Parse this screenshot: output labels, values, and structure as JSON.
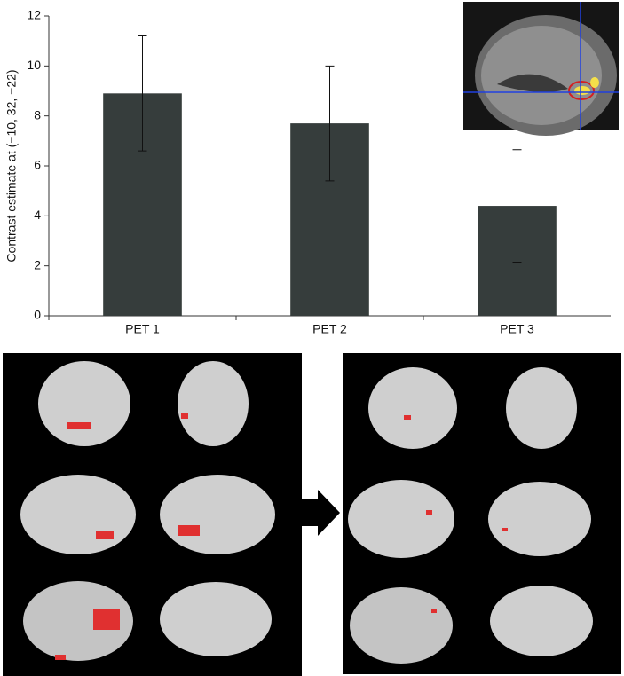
{
  "chart_data": {
    "type": "bar",
    "y_label": "Contrast estimate at (−10, 32, −22)",
    "categories": [
      "PET 1",
      "PET 2",
      "PET 3"
    ],
    "values": [
      8.9,
      7.7,
      4.4
    ],
    "errors": [
      2.3,
      2.3,
      2.25
    ],
    "color": "#363d3c",
    "ylim": [
      0,
      12
    ],
    "yticks": [
      0,
      2,
      4,
      6,
      8,
      10,
      12
    ],
    "grid": false
  }
}
